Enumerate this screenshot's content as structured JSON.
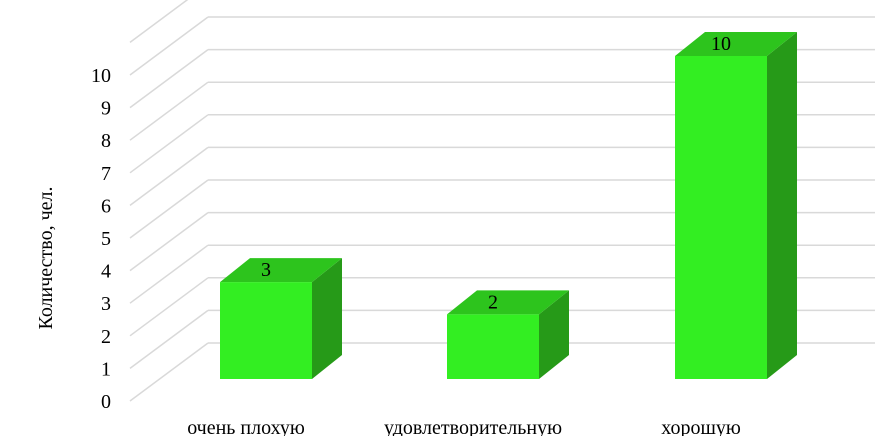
{
  "chart_data": {
    "type": "bar",
    "title": "",
    "xlabel": "",
    "ylabel": "Количество, чел.",
    "categories": [
      "очень плохую",
      "удовлетворительную",
      "хорошую"
    ],
    "values": [
      3,
      2,
      10
    ],
    "ylim": [
      0,
      10
    ],
    "yticks": [
      "0",
      "1",
      "2",
      "3",
      "4",
      "5",
      "6",
      "7",
      "8",
      "9",
      "10"
    ],
    "data_labels": [
      "3",
      "2",
      "10"
    ],
    "grid": true,
    "style": "3d-column",
    "colors": {
      "front": "#33EE22",
      "top": "#2DC41D",
      "side": "#269A18",
      "grid": "#D9D9D9"
    }
  }
}
